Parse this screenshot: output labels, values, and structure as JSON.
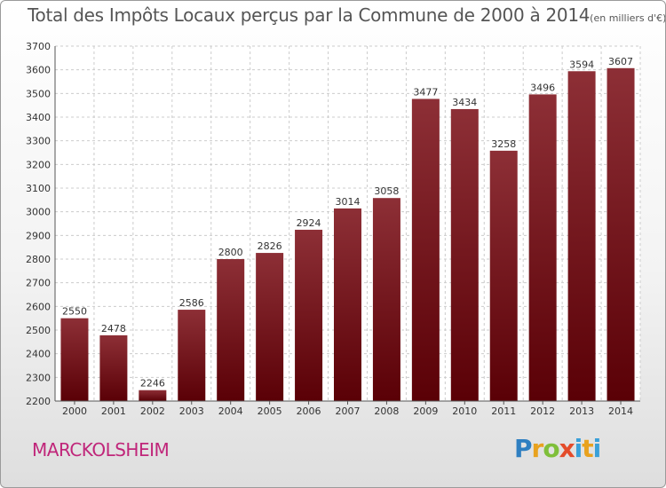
{
  "chart_data": {
    "type": "bar",
    "title": "Total des Impôts Locaux perçus par la Commune de 2000 à 2014",
    "subtitle": "(en milliers d'€)",
    "categories": [
      "2000",
      "2001",
      "2002",
      "2003",
      "2004",
      "2005",
      "2006",
      "2007",
      "2008",
      "2009",
      "2010",
      "2011",
      "2012",
      "2013",
      "2014"
    ],
    "values": [
      2550,
      2478,
      2246,
      2586,
      2800,
      2826,
      2924,
      3014,
      3058,
      3477,
      3434,
      3258,
      3496,
      3594,
      3607
    ],
    "ylim": [
      2200,
      3700
    ],
    "yticks": [
      2200,
      2300,
      2400,
      2500,
      2600,
      2700,
      2800,
      2900,
      3000,
      3100,
      3200,
      3300,
      3400,
      3500,
      3600,
      3700
    ],
    "xlabel": "",
    "ylabel": "",
    "grid": true,
    "bar_color": "#7a1e26"
  },
  "commune": "MARCKOLSHEIM",
  "logo": {
    "p": "P",
    "r": "r",
    "o": "o",
    "x": "x",
    "i": "i",
    "t": "t",
    "i2": "i"
  }
}
